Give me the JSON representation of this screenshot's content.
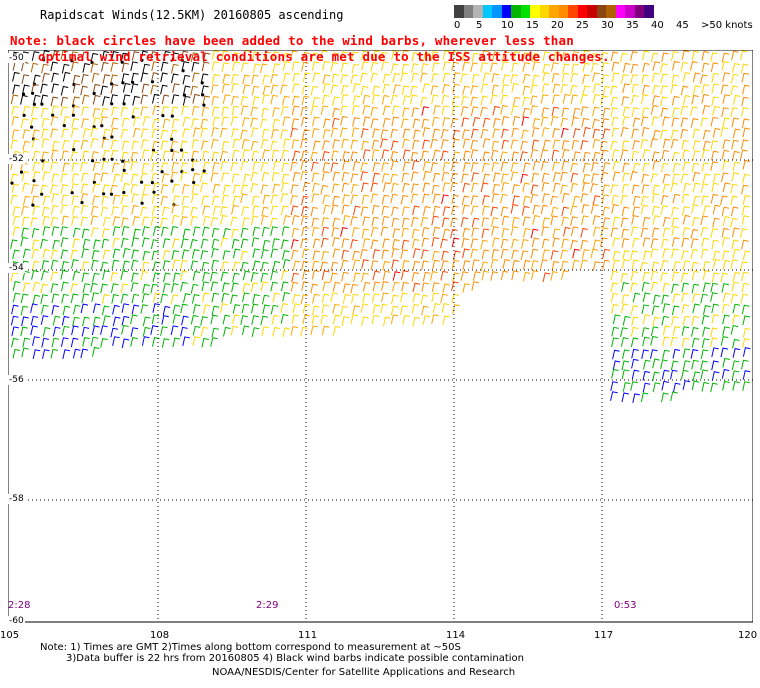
{
  "title": "Rapidscat Winds(12.5KM) 20160805 ascending",
  "note": {
    "line1": "Note: black circles have been added to the wind barbs, wherever less than",
    "line2": "optimal wind retrieval conditions are met due to the ISS attitude changes."
  },
  "legend": {
    "labels": [
      "0",
      "5",
      "10",
      "15",
      "20",
      "25",
      "30",
      "35",
      "40",
      "45",
      ">50 knots"
    ],
    "colors": [
      "#404040",
      "#808080",
      "#b4b4b4",
      "#00c8ff",
      "#0096ff",
      "#0000ff",
      "#00b400",
      "#00e000",
      "#ffff00",
      "#ffd700",
      "#ffa500",
      "#ff8c00",
      "#ff4500",
      "#ff0000",
      "#c80000",
      "#8b4513",
      "#b06000",
      "#ff00ff",
      "#c800c8",
      "#800080",
      "#400080"
    ]
  },
  "axes": {
    "lat_labels": [
      "-50",
      "-52",
      "-54",
      "-56",
      "-58",
      "-60"
    ],
    "lon_labels": [
      "105",
      "108",
      "111",
      "114",
      "117",
      "120"
    ]
  },
  "times": [
    "2:28",
    "2:29",
    "0:53"
  ],
  "footnotes": {
    "line1": "Note: 1) Times are GMT 2)Times along bottom correspond to measurement at ~50S",
    "line2": "3)Data buffer is 22 hrs from 20160805 4) Black wind barbs indicate possible contamination",
    "line3": "NOAA/NESDIS/Center for Satellite Applications and Research"
  }
}
